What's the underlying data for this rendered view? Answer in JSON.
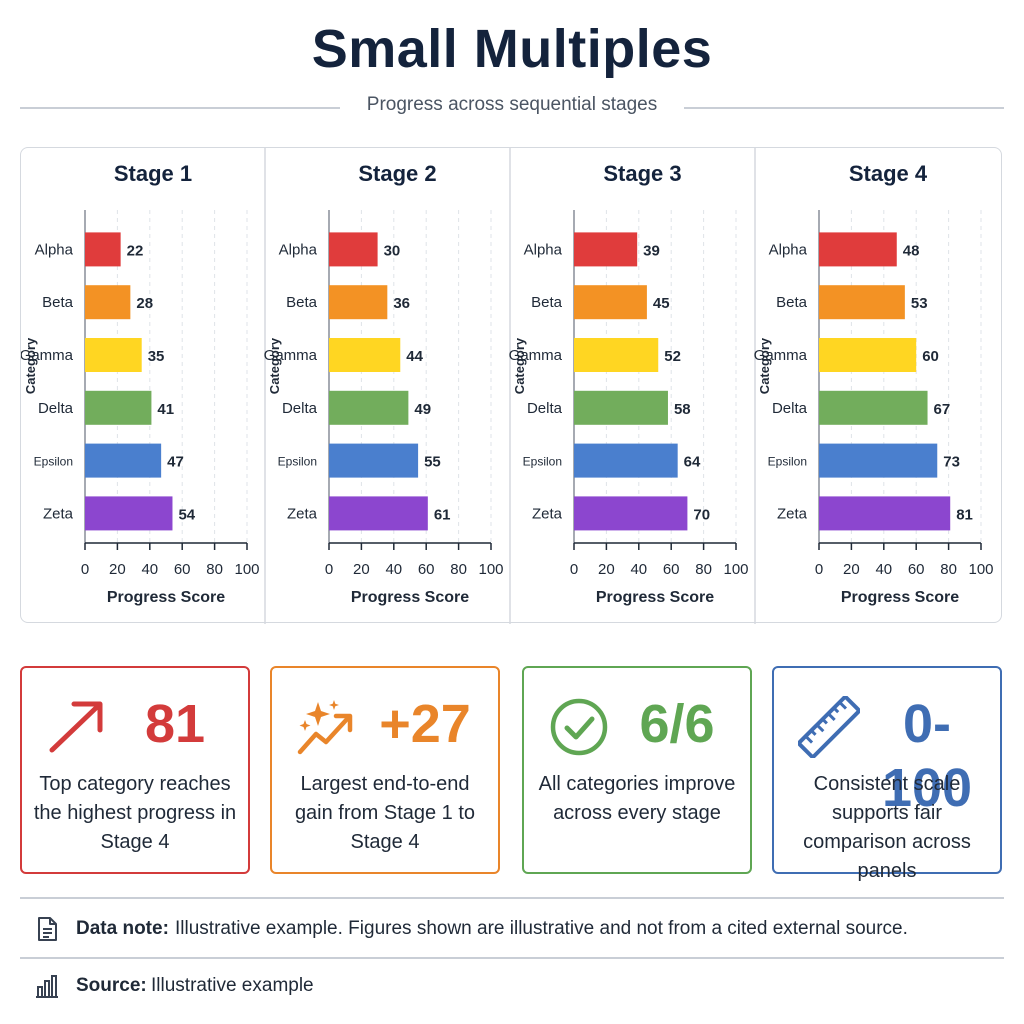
{
  "title": "Small Multiples",
  "subtitle": "Progress across sequential stages",
  "chart_data": {
    "type": "bar",
    "orientation": "horizontal",
    "categories": [
      "Alpha",
      "Beta",
      "Gamma",
      "Delta",
      "Epsilon",
      "Zeta"
    ],
    "xlabel": "Progress Score",
    "ylabel": "Category",
    "xlim": [
      0,
      100
    ],
    "xticks": [
      0,
      20,
      40,
      60,
      80,
      100
    ],
    "grid": "vertical dashed",
    "colors": [
      "#e03c3c",
      "#f39224",
      "#ffd622",
      "#72ad5c",
      "#4a7fce",
      "#8c46cf"
    ],
    "panels": [
      {
        "title": "Stage 1",
        "values": [
          22,
          28,
          35,
          41,
          47,
          54
        ]
      },
      {
        "title": "Stage 2",
        "values": [
          30,
          36,
          44,
          49,
          55,
          61
        ]
      },
      {
        "title": "Stage 3",
        "values": [
          39,
          45,
          52,
          58,
          64,
          70
        ]
      },
      {
        "title": "Stage 4",
        "values": [
          48,
          53,
          60,
          67,
          73,
          81
        ]
      }
    ]
  },
  "cards": [
    {
      "metric": "81",
      "desc": "Top category reaches the highest progress in Stage 4",
      "color": "#d33b3b",
      "icon": "trend-up-arrow-icon"
    },
    {
      "metric": "+27",
      "desc": "Largest end-to-end gain from Stage 1 to Stage 4",
      "color": "#e9852a",
      "icon": "sparkle-trend-icon"
    },
    {
      "metric": "6/6",
      "desc": "All categories improve across every stage",
      "color": "#5fa653",
      "icon": "check-circle-icon"
    },
    {
      "metric": "0-100",
      "desc": "Consistent scale supports fair comparison across panels",
      "color": "#3f6db3",
      "icon": "ruler-icon"
    }
  ],
  "footer": {
    "note_label": "Data note:",
    "note_text": "Illustrative example. Figures shown are illustrative and not from a cited external source.",
    "source_label": "Source:",
    "source_text": "Illustrative example"
  }
}
